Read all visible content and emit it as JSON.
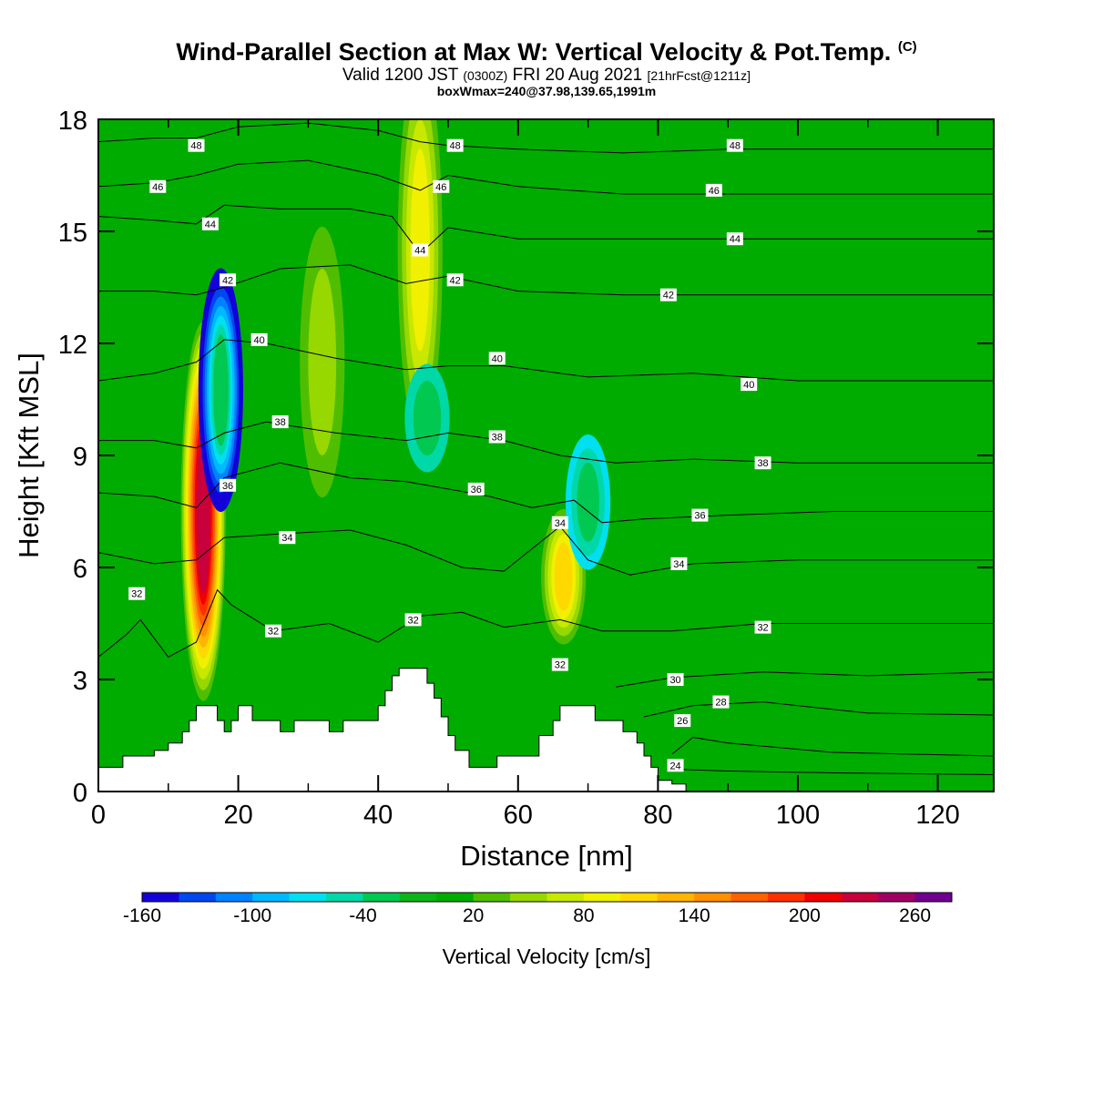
{
  "header": {
    "title_main": "Wind-Parallel Section at Max W: Vertical Velocity & Pot.Temp.",
    "title_mark": "(C)",
    "valid_a": "Valid 1200 JST",
    "valid_utc": "(0300Z)",
    "valid_b": "FRI 20 Aug 2021",
    "forecast": "[21hrFcst@1211z]",
    "box_info": "boxWmax=240@37.98,139.65,1991m"
  },
  "chart_data": {
    "type": "heatmap",
    "xlabel": "Distance [nm]",
    "ylabel": "Height [Kft MSL]",
    "xlim": [
      0,
      128
    ],
    "ylim": [
      0,
      18
    ],
    "x_ticks": [
      0,
      20,
      40,
      60,
      80,
      100,
      120
    ],
    "y_ticks": [
      0,
      3,
      6,
      9,
      12,
      15,
      18
    ],
    "colorbar": {
      "label": "Vertical Velocity [cm/s]",
      "tick_labels": [
        "-160",
        "-100",
        "-40",
        "20",
        "80",
        "140",
        "200",
        "260"
      ],
      "tick_values": [
        -160,
        -100,
        -40,
        20,
        80,
        140,
        200,
        260
      ],
      "levels": [
        -160,
        -140,
        -120,
        -100,
        -80,
        -60,
        -40,
        -20,
        0,
        20,
        40,
        60,
        80,
        100,
        120,
        140,
        160,
        180,
        200,
        220,
        240,
        260,
        280
      ],
      "colors": [
        "#1400d8",
        "#0046f0",
        "#0082ff",
        "#00b8ff",
        "#00e0f0",
        "#00d8a8",
        "#00c850",
        "#0cb418",
        "#00ac00",
        "#50be00",
        "#96d800",
        "#c8e800",
        "#f0f000",
        "#ffd800",
        "#ffb400",
        "#ff9000",
        "#ff6000",
        "#ff3000",
        "#f00000",
        "#c8003c",
        "#a00064",
        "#700090"
      ]
    },
    "field_background_cms": 0,
    "vertical_velocity_features": [
      {
        "x": 15,
        "z_range": [
          4,
          11
        ],
        "w": 220,
        "note": "updraft core"
      },
      {
        "x": 17.5,
        "z_range": [
          8.5,
          13
        ],
        "w": -160,
        "note": "downdraft core"
      },
      {
        "x": 46,
        "z_range": [
          11,
          18
        ],
        "w": 80
      },
      {
        "x": 32,
        "z_range": [
          9,
          14
        ],
        "w": 40
      },
      {
        "x": 66.5,
        "z_range": [
          4.5,
          7
        ],
        "w": 100
      },
      {
        "x": 70,
        "z_range": [
          6.5,
          9
        ],
        "w": -60
      },
      {
        "x": 47,
        "z_range": [
          9,
          11
        ],
        "w": -40
      }
    ],
    "theta_contours": [
      {
        "value": 24,
        "label": "24",
        "points": [
          [
            82,
            0.6
          ],
          [
            90,
            0.55
          ],
          [
            105,
            0.5
          ],
          [
            128,
            0.45
          ]
        ]
      },
      {
        "value": 26,
        "label": "26",
        "points": [
          [
            82,
            1.0
          ],
          [
            85,
            1.45
          ],
          [
            90,
            1.3
          ],
          [
            105,
            1.05
          ],
          [
            128,
            0.95
          ]
        ]
      },
      {
        "value": 28,
        "label": "28",
        "points": [
          [
            78,
            2.0
          ],
          [
            85,
            2.3
          ],
          [
            95,
            2.4
          ],
          [
            110,
            2.1
          ],
          [
            128,
            2.05
          ]
        ]
      },
      {
        "value": 30,
        "label": "30",
        "points": [
          [
            74,
            2.8
          ],
          [
            82,
            3.05
          ],
          [
            95,
            3.2
          ],
          [
            110,
            3.1
          ],
          [
            128,
            3.2
          ]
        ]
      },
      {
        "value": 32,
        "label": "32",
        "points": [
          [
            0,
            3.6
          ],
          [
            4,
            4.2
          ],
          [
            6,
            4.6
          ],
          [
            10,
            3.6
          ],
          [
            14,
            4.0
          ],
          [
            17,
            5.4
          ],
          [
            19,
            5.0
          ],
          [
            25,
            4.3
          ],
          [
            33,
            4.5
          ],
          [
            40,
            4.0
          ],
          [
            46,
            4.7
          ],
          [
            52,
            4.8
          ],
          [
            58,
            4.4
          ],
          [
            66,
            4.6
          ],
          [
            72,
            4.3
          ],
          [
            82,
            4.3
          ],
          [
            95,
            4.5
          ],
          [
            110,
            4.5
          ],
          [
            128,
            4.5
          ]
        ]
      },
      {
        "value": 34,
        "label": "34",
        "points": [
          [
            0,
            6.4
          ],
          [
            8,
            6.1
          ],
          [
            14,
            6.2
          ],
          [
            18,
            6.8
          ],
          [
            26,
            6.9
          ],
          [
            36,
            7.0
          ],
          [
            44,
            6.6
          ],
          [
            52,
            6.0
          ],
          [
            58,
            5.9
          ],
          [
            62,
            6.5
          ],
          [
            66,
            7.1
          ],
          [
            70,
            6.2
          ],
          [
            76,
            5.8
          ],
          [
            85,
            6.1
          ],
          [
            100,
            6.2
          ],
          [
            128,
            6.2
          ]
        ]
      },
      {
        "value": 36,
        "label": "36",
        "points": [
          [
            0,
            8.0
          ],
          [
            8,
            7.9
          ],
          [
            14,
            7.6
          ],
          [
            18,
            8.4
          ],
          [
            26,
            8.8
          ],
          [
            36,
            8.4
          ],
          [
            44,
            8.3
          ],
          [
            50,
            8.1
          ],
          [
            56,
            7.9
          ],
          [
            62,
            7.6
          ],
          [
            68,
            7.8
          ],
          [
            72,
            7.2
          ],
          [
            78,
            7.3
          ],
          [
            90,
            7.4
          ],
          [
            105,
            7.5
          ],
          [
            128,
            7.5
          ]
        ]
      },
      {
        "value": 38,
        "label": "38",
        "points": [
          [
            0,
            9.4
          ],
          [
            8,
            9.4
          ],
          [
            14,
            9.2
          ],
          [
            18,
            9.6
          ],
          [
            24,
            9.9
          ],
          [
            34,
            9.6
          ],
          [
            44,
            9.4
          ],
          [
            50,
            9.6
          ],
          [
            58,
            9.4
          ],
          [
            66,
            9.0
          ],
          [
            74,
            8.8
          ],
          [
            85,
            8.9
          ],
          [
            100,
            8.8
          ],
          [
            128,
            8.8
          ]
        ]
      },
      {
        "value": 40,
        "label": "40",
        "points": [
          [
            0,
            11.0
          ],
          [
            8,
            11.2
          ],
          [
            14,
            11.5
          ],
          [
            18,
            12.1
          ],
          [
            24,
            12.0
          ],
          [
            34,
            11.6
          ],
          [
            44,
            11.3
          ],
          [
            50,
            11.4
          ],
          [
            58,
            11.4
          ],
          [
            70,
            11.1
          ],
          [
            85,
            11.2
          ],
          [
            100,
            11.0
          ],
          [
            128,
            11.0
          ]
        ]
      },
      {
        "value": 42,
        "label": "42",
        "points": [
          [
            0,
            13.4
          ],
          [
            8,
            13.4
          ],
          [
            14,
            13.3
          ],
          [
            18,
            13.5
          ],
          [
            26,
            14.0
          ],
          [
            36,
            14.1
          ],
          [
            44,
            13.6
          ],
          [
            47,
            13.7
          ],
          [
            50,
            13.8
          ],
          [
            60,
            13.4
          ],
          [
            75,
            13.3
          ],
          [
            90,
            13.3
          ],
          [
            128,
            13.3
          ]
        ]
      },
      {
        "value": 44,
        "label": "44",
        "points": [
          [
            0,
            15.4
          ],
          [
            8,
            15.3
          ],
          [
            14,
            15.2
          ],
          [
            18,
            15.7
          ],
          [
            26,
            15.6
          ],
          [
            36,
            15.6
          ],
          [
            42,
            15.4
          ],
          [
            46,
            14.4
          ],
          [
            50,
            15.1
          ],
          [
            60,
            14.8
          ],
          [
            75,
            14.8
          ],
          [
            90,
            14.8
          ],
          [
            128,
            14.8
          ]
        ]
      },
      {
        "value": 46,
        "label": "46",
        "points": [
          [
            0,
            16.2
          ],
          [
            8,
            16.3
          ],
          [
            14,
            16.5
          ],
          [
            20,
            16.8
          ],
          [
            30,
            16.9
          ],
          [
            40,
            16.5
          ],
          [
            46,
            16.1
          ],
          [
            50,
            16.5
          ],
          [
            60,
            16.2
          ],
          [
            75,
            16.0
          ],
          [
            90,
            16.0
          ],
          [
            128,
            16.0
          ]
        ]
      },
      {
        "value": 48,
        "label": "48",
        "points": [
          [
            0,
            17.4
          ],
          [
            8,
            17.5
          ],
          [
            14,
            17.5
          ],
          [
            20,
            17.8
          ],
          [
            30,
            17.9
          ],
          [
            40,
            17.7
          ],
          [
            46,
            17.4
          ],
          [
            50,
            17.3
          ],
          [
            60,
            17.2
          ],
          [
            75,
            17.1
          ],
          [
            90,
            17.2
          ],
          [
            128,
            17.2
          ]
        ]
      }
    ],
    "contour_labels": [
      {
        "text": "48",
        "x": 14,
        "y": 17.3
      },
      {
        "text": "46",
        "x": 8.5,
        "y": 16.2
      },
      {
        "text": "44",
        "x": 16,
        "y": 15.2
      },
      {
        "text": "42",
        "x": 18.5,
        "y": 13.7
      },
      {
        "text": "40",
        "x": 23,
        "y": 12.1
      },
      {
        "text": "38",
        "x": 26,
        "y": 9.9
      },
      {
        "text": "36",
        "x": 18.5,
        "y": 8.2
      },
      {
        "text": "34",
        "x": 27,
        "y": 6.8
      },
      {
        "text": "32",
        "x": 5.5,
        "y": 5.3
      },
      {
        "text": "32",
        "x": 25,
        "y": 4.3
      },
      {
        "text": "48",
        "x": 51,
        "y": 17.3
      },
      {
        "text": "46",
        "x": 49,
        "y": 16.2
      },
      {
        "text": "44",
        "x": 46,
        "y": 14.5
      },
      {
        "text": "42",
        "x": 51,
        "y": 13.7
      },
      {
        "text": "40",
        "x": 57,
        "y": 11.6
      },
      {
        "text": "38",
        "x": 57,
        "y": 9.5
      },
      {
        "text": "36",
        "x": 54,
        "y": 8.1
      },
      {
        "text": "34",
        "x": 66,
        "y": 7.2
      },
      {
        "text": "32",
        "x": 45,
        "y": 4.6
      },
      {
        "text": "32",
        "x": 66,
        "y": 3.4
      },
      {
        "text": "48",
        "x": 91,
        "y": 17.3
      },
      {
        "text": "46",
        "x": 88,
        "y": 16.1
      },
      {
        "text": "44",
        "x": 91,
        "y": 14.8
      },
      {
        "text": "42",
        "x": 81.5,
        "y": 13.3
      },
      {
        "text": "40",
        "x": 93,
        "y": 10.9
      },
      {
        "text": "38",
        "x": 95,
        "y": 8.8
      },
      {
        "text": "36",
        "x": 86,
        "y": 7.4
      },
      {
        "text": "34",
        "x": 83,
        "y": 6.1
      },
      {
        "text": "32",
        "x": 95,
        "y": 4.4
      },
      {
        "text": "30",
        "x": 82.5,
        "y": 3.0
      },
      {
        "text": "28",
        "x": 89,
        "y": 2.4
      },
      {
        "text": "26",
        "x": 83.5,
        "y": 1.9
      },
      {
        "text": "24",
        "x": 82.5,
        "y": 0.7
      }
    ],
    "terrain_profile": [
      [
        0,
        0.65
      ],
      [
        3.5,
        0.65
      ],
      [
        3.5,
        0.95
      ],
      [
        8,
        0.95
      ],
      [
        8,
        1.1
      ],
      [
        10,
        1.1
      ],
      [
        10,
        1.3
      ],
      [
        12,
        1.3
      ],
      [
        12,
        1.6
      ],
      [
        13,
        1.6
      ],
      [
        13,
        1.9
      ],
      [
        14,
        1.9
      ],
      [
        14,
        2.3
      ],
      [
        17,
        2.3
      ],
      [
        17,
        1.9
      ],
      [
        18,
        1.9
      ],
      [
        18,
        1.6
      ],
      [
        19,
        1.6
      ],
      [
        19,
        1.9
      ],
      [
        20,
        1.9
      ],
      [
        20,
        2.3
      ],
      [
        22,
        2.3
      ],
      [
        22,
        1.9
      ],
      [
        26,
        1.9
      ],
      [
        26,
        1.6
      ],
      [
        28,
        1.6
      ],
      [
        28,
        1.9
      ],
      [
        33,
        1.9
      ],
      [
        33,
        1.6
      ],
      [
        35,
        1.6
      ],
      [
        35,
        1.9
      ],
      [
        40,
        1.9
      ],
      [
        40,
        2.3
      ],
      [
        41,
        2.3
      ],
      [
        41,
        2.7
      ],
      [
        42,
        2.7
      ],
      [
        42,
        3.1
      ],
      [
        43,
        3.1
      ],
      [
        43,
        3.3
      ],
      [
        47,
        3.3
      ],
      [
        47,
        2.9
      ],
      [
        48,
        2.9
      ],
      [
        48,
        2.5
      ],
      [
        49,
        2.5
      ],
      [
        49,
        2.0
      ],
      [
        50,
        2.0
      ],
      [
        50,
        1.5
      ],
      [
        51,
        1.5
      ],
      [
        51,
        1.1
      ],
      [
        53,
        1.1
      ],
      [
        53,
        0.65
      ],
      [
        57,
        0.65
      ],
      [
        57,
        0.95
      ],
      [
        63,
        0.95
      ],
      [
        63,
        1.5
      ],
      [
        65,
        1.5
      ],
      [
        65,
        1.9
      ],
      [
        66,
        1.9
      ],
      [
        66,
        2.3
      ],
      [
        71,
        2.3
      ],
      [
        71,
        1.9
      ],
      [
        75,
        1.9
      ],
      [
        75,
        1.6
      ],
      [
        77,
        1.6
      ],
      [
        77,
        1.3
      ],
      [
        78,
        1.3
      ],
      [
        78,
        0.95
      ],
      [
        79,
        0.95
      ],
      [
        79,
        0.65
      ],
      [
        80,
        0.65
      ],
      [
        80,
        0.3
      ],
      [
        82,
        0.3
      ],
      [
        82,
        0.2
      ],
      [
        84,
        0.2
      ]
    ]
  }
}
